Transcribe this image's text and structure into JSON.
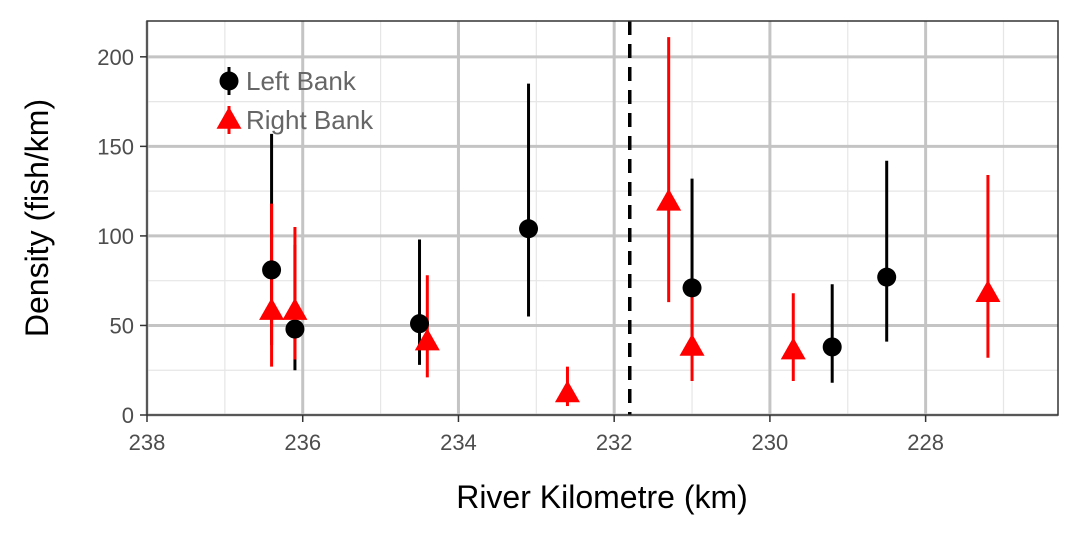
{
  "chart_data": {
    "type": "scatter",
    "title": "",
    "xlabel": "River Kilometre (km)",
    "ylabel": "Density (fish/km)",
    "x_reversed": true,
    "xlim": [
      238,
      226.3
    ],
    "ylim": [
      0,
      220
    ],
    "x_ticks": [
      238,
      236,
      234,
      232,
      230,
      228
    ],
    "y_ticks": [
      0,
      50,
      100,
      150,
      200
    ],
    "grid": true,
    "legend_position": "top-left inside",
    "reference_line": {
      "x": 231.8,
      "style": "dashed",
      "color": "#000000"
    },
    "series": [
      {
        "name": "Left Bank",
        "marker": "circle",
        "color": "#000000",
        "points": [
          {
            "x": 236.4,
            "y": 81,
            "lo": 39,
            "hi": 157
          },
          {
            "x": 236.1,
            "y": 48,
            "lo": 25,
            "hi": 95
          },
          {
            "x": 234.5,
            "y": 51,
            "lo": 28,
            "hi": 98
          },
          {
            "x": 233.1,
            "y": 104,
            "lo": 55,
            "hi": 185
          },
          {
            "x": 231.0,
            "y": 71,
            "lo": 37,
            "hi": 132
          },
          {
            "x": 229.2,
            "y": 38,
            "lo": 18,
            "hi": 73
          },
          {
            "x": 228.5,
            "y": 77,
            "lo": 41,
            "hi": 142
          }
        ]
      },
      {
        "name": "Right Bank",
        "marker": "triangle",
        "color": "#ff0000",
        "points": [
          {
            "x": 236.4,
            "y": 58,
            "lo": 27,
            "hi": 118
          },
          {
            "x": 236.1,
            "y": 58,
            "lo": 31,
            "hi": 105
          },
          {
            "x": 234.4,
            "y": 41,
            "lo": 21,
            "hi": 78
          },
          {
            "x": 232.6,
            "y": 12,
            "lo": 5,
            "hi": 27
          },
          {
            "x": 231.3,
            "y": 119,
            "lo": 63,
            "hi": 211
          },
          {
            "x": 231.0,
            "y": 38,
            "lo": 19,
            "hi": 72
          },
          {
            "x": 229.7,
            "y": 36,
            "lo": 19,
            "hi": 68
          },
          {
            "x": 227.2,
            "y": 68,
            "lo": 32,
            "hi": 134
          }
        ]
      }
    ]
  }
}
